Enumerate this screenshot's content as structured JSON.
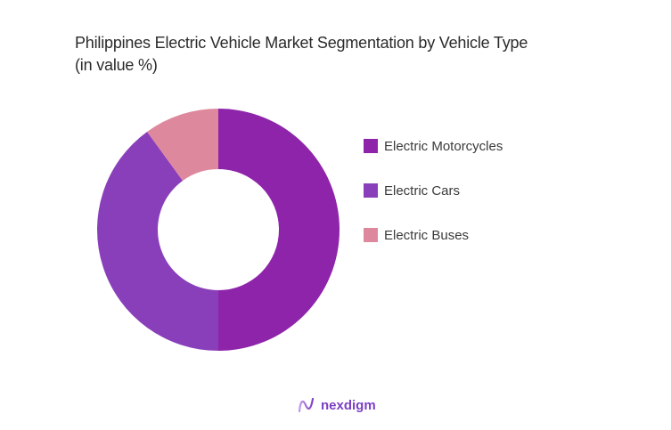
{
  "title": {
    "line1": "Philippines Electric Vehicle Market Segmentation by Vehicle Type",
    "line2": "(in value %)"
  },
  "legend": [
    {
      "label": "Electric Motorcycles",
      "color": "#8e24aa"
    },
    {
      "label": "Electric Cars",
      "color": "#8a3fba"
    },
    {
      "label": "Electric Buses",
      "color": "#de889e"
    }
  ],
  "brand": {
    "name": "nexdigm",
    "color": "#7b3fc4"
  },
  "chart_data": {
    "type": "pie",
    "subtype": "donut",
    "title": "Philippines Electric Vehicle Market Segmentation by Vehicle Type (in value %)",
    "categories": [
      "Electric Motorcycles",
      "Electric Cars",
      "Electric Buses"
    ],
    "values": [
      50,
      40,
      10
    ],
    "colors": [
      "#8e24aa",
      "#8a3fba",
      "#de889e"
    ],
    "legend_position": "right",
    "data_labels": false
  }
}
